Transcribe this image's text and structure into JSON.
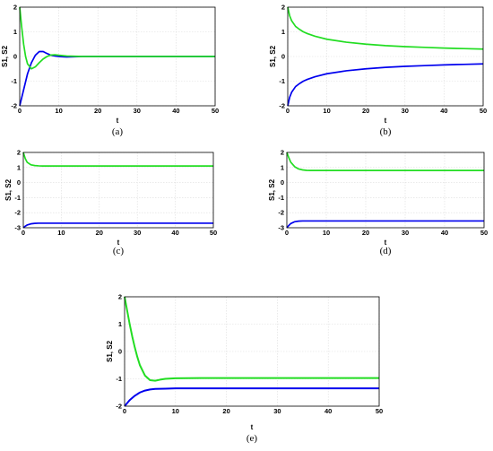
{
  "figure": {
    "background": "#ffffff",
    "series_colors": {
      "S1": "#0000ee",
      "S2": "#22dd22"
    },
    "grid": true
  },
  "chart_data": [
    {
      "type": "line",
      "caption": "(a)",
      "xlabel": "t",
      "ylabel": "S1, S2",
      "xlim": [
        0,
        50
      ],
      "ylim": [
        -2,
        2
      ],
      "xticks": [
        "0",
        "10",
        "20",
        "30",
        "40",
        "50"
      ],
      "yticks": [
        "-2",
        "-1",
        "0",
        "1",
        "2"
      ],
      "series": [
        {
          "color": "#0000ee",
          "x": [
            0,
            1,
            2,
            3,
            4,
            5,
            6,
            7,
            8,
            9,
            10,
            12,
            14,
            16,
            18,
            20,
            25,
            30,
            40,
            50
          ],
          "y": [
            -2,
            -1.35,
            -0.7,
            -0.25,
            0.05,
            0.2,
            0.2,
            0.12,
            0.05,
            0.02,
            0.0,
            -0.02,
            -0.01,
            0,
            0,
            0,
            0,
            0,
            0,
            0
          ]
        },
        {
          "color": "#22dd22",
          "x": [
            0,
            0.5,
            1,
            1.5,
            2,
            3,
            4,
            5,
            6,
            7,
            8,
            9,
            10,
            12,
            14,
            16,
            20,
            25,
            30,
            40,
            50
          ],
          "y": [
            2,
            1.2,
            0.5,
            0.0,
            -0.3,
            -0.5,
            -0.42,
            -0.25,
            -0.1,
            0.0,
            0.06,
            0.07,
            0.05,
            0.02,
            0.01,
            0,
            0,
            0,
            0,
            0,
            0
          ]
        }
      ]
    },
    {
      "type": "line",
      "caption": "(b)",
      "xlabel": "t",
      "ylabel": "S1, S2",
      "xlim": [
        0,
        50
      ],
      "ylim": [
        -2,
        2
      ],
      "xticks": [
        "0",
        "10",
        "20",
        "30",
        "40",
        "50"
      ],
      "yticks": [
        "-2",
        "-1",
        "0",
        "1",
        "2"
      ],
      "series": [
        {
          "color": "#0000ee",
          "x": [
            0,
            0.5,
            1,
            2,
            3,
            4,
            5,
            7,
            10,
            15,
            20,
            25,
            30,
            35,
            40,
            45,
            50
          ],
          "y": [
            -2,
            -1.65,
            -1.45,
            -1.22,
            -1.1,
            -1.0,
            -0.93,
            -0.82,
            -0.7,
            -0.58,
            -0.5,
            -0.44,
            -0.4,
            -0.37,
            -0.34,
            -0.32,
            -0.3
          ]
        },
        {
          "color": "#22dd22",
          "x": [
            0,
            0.5,
            1,
            2,
            3,
            4,
            5,
            7,
            10,
            15,
            20,
            25,
            30,
            35,
            40,
            45,
            50
          ],
          "y": [
            2,
            1.65,
            1.45,
            1.22,
            1.1,
            1.0,
            0.93,
            0.82,
            0.7,
            0.58,
            0.5,
            0.44,
            0.4,
            0.37,
            0.34,
            0.32,
            0.3
          ]
        }
      ]
    },
    {
      "type": "line",
      "caption": "(c)",
      "xlabel": "t",
      "ylabel": "S1, S2",
      "xlim": [
        0,
        50
      ],
      "ylim": [
        -3,
        2
      ],
      "xticks": [
        "0",
        "10",
        "20",
        "30",
        "40",
        "50"
      ],
      "yticks": [
        "-3",
        "-2",
        "-1",
        "0",
        "1",
        "2"
      ],
      "series": [
        {
          "color": "#0000ee",
          "x": [
            0,
            0.5,
            1,
            2,
            3,
            4,
            5,
            7,
            10,
            20,
            30,
            40,
            50
          ],
          "y": [
            -3,
            -2.9,
            -2.82,
            -2.74,
            -2.71,
            -2.7,
            -2.7,
            -2.7,
            -2.7,
            -2.7,
            -2.7,
            -2.7,
            -2.7
          ]
        },
        {
          "color": "#22dd22",
          "x": [
            0,
            0.5,
            1,
            2,
            3,
            4,
            5,
            7,
            10,
            20,
            30,
            40,
            50
          ],
          "y": [
            2,
            1.6,
            1.35,
            1.18,
            1.13,
            1.11,
            1.1,
            1.1,
            1.1,
            1.1,
            1.1,
            1.1,
            1.1
          ]
        }
      ]
    },
    {
      "type": "line",
      "caption": "(d)",
      "xlabel": "t",
      "ylabel": "S1, S2",
      "xlim": [
        0,
        50
      ],
      "ylim": [
        -3,
        2
      ],
      "xticks": [
        "0",
        "10",
        "20",
        "30",
        "40",
        "50"
      ],
      "yticks": [
        "-3",
        "-2",
        "-1",
        "0",
        "1",
        "2"
      ],
      "series": [
        {
          "color": "#0000ee",
          "x": [
            0,
            0.5,
            1,
            2,
            3,
            4,
            5,
            7,
            10,
            20,
            30,
            40,
            50
          ],
          "y": [
            -3,
            -2.85,
            -2.72,
            -2.6,
            -2.56,
            -2.55,
            -2.55,
            -2.55,
            -2.55,
            -2.55,
            -2.55,
            -2.55,
            -2.55
          ]
        },
        {
          "color": "#22dd22",
          "x": [
            0,
            0.5,
            1,
            2,
            3,
            4,
            5,
            6,
            7,
            10,
            20,
            30,
            40,
            50
          ],
          "y": [
            2,
            1.65,
            1.35,
            1.05,
            0.9,
            0.84,
            0.81,
            0.8,
            0.8,
            0.8,
            0.8,
            0.8,
            0.8,
            0.8
          ]
        }
      ]
    },
    {
      "type": "line",
      "caption": "(e)",
      "xlabel": "t",
      "ylabel": "S1, S2",
      "xlim": [
        0,
        50
      ],
      "ylim": [
        -2,
        2
      ],
      "xticks": [
        "0",
        "10",
        "20",
        "30",
        "40",
        "50"
      ],
      "yticks": [
        "-2",
        "-1",
        "0",
        "1",
        "2"
      ],
      "series": [
        {
          "color": "#0000ee",
          "x": [
            0,
            1,
            2,
            3,
            4,
            5,
            6,
            8,
            10,
            15,
            20,
            30,
            40,
            50
          ],
          "y": [
            -2,
            -1.78,
            -1.62,
            -1.5,
            -1.43,
            -1.39,
            -1.37,
            -1.36,
            -1.35,
            -1.35,
            -1.35,
            -1.35,
            -1.35,
            -1.35
          ]
        },
        {
          "color": "#22dd22",
          "x": [
            0,
            0.5,
            1,
            1.5,
            2,
            2.5,
            3,
            4,
            5,
            6,
            7,
            8,
            10,
            15,
            20,
            30,
            40,
            50
          ],
          "y": [
            2,
            1.5,
            1.0,
            0.55,
            0.15,
            -0.2,
            -0.5,
            -0.88,
            -1.05,
            -1.07,
            -1.03,
            -1.0,
            -0.98,
            -0.97,
            -0.97,
            -0.97,
            -0.97,
            -0.97
          ]
        }
      ]
    }
  ]
}
